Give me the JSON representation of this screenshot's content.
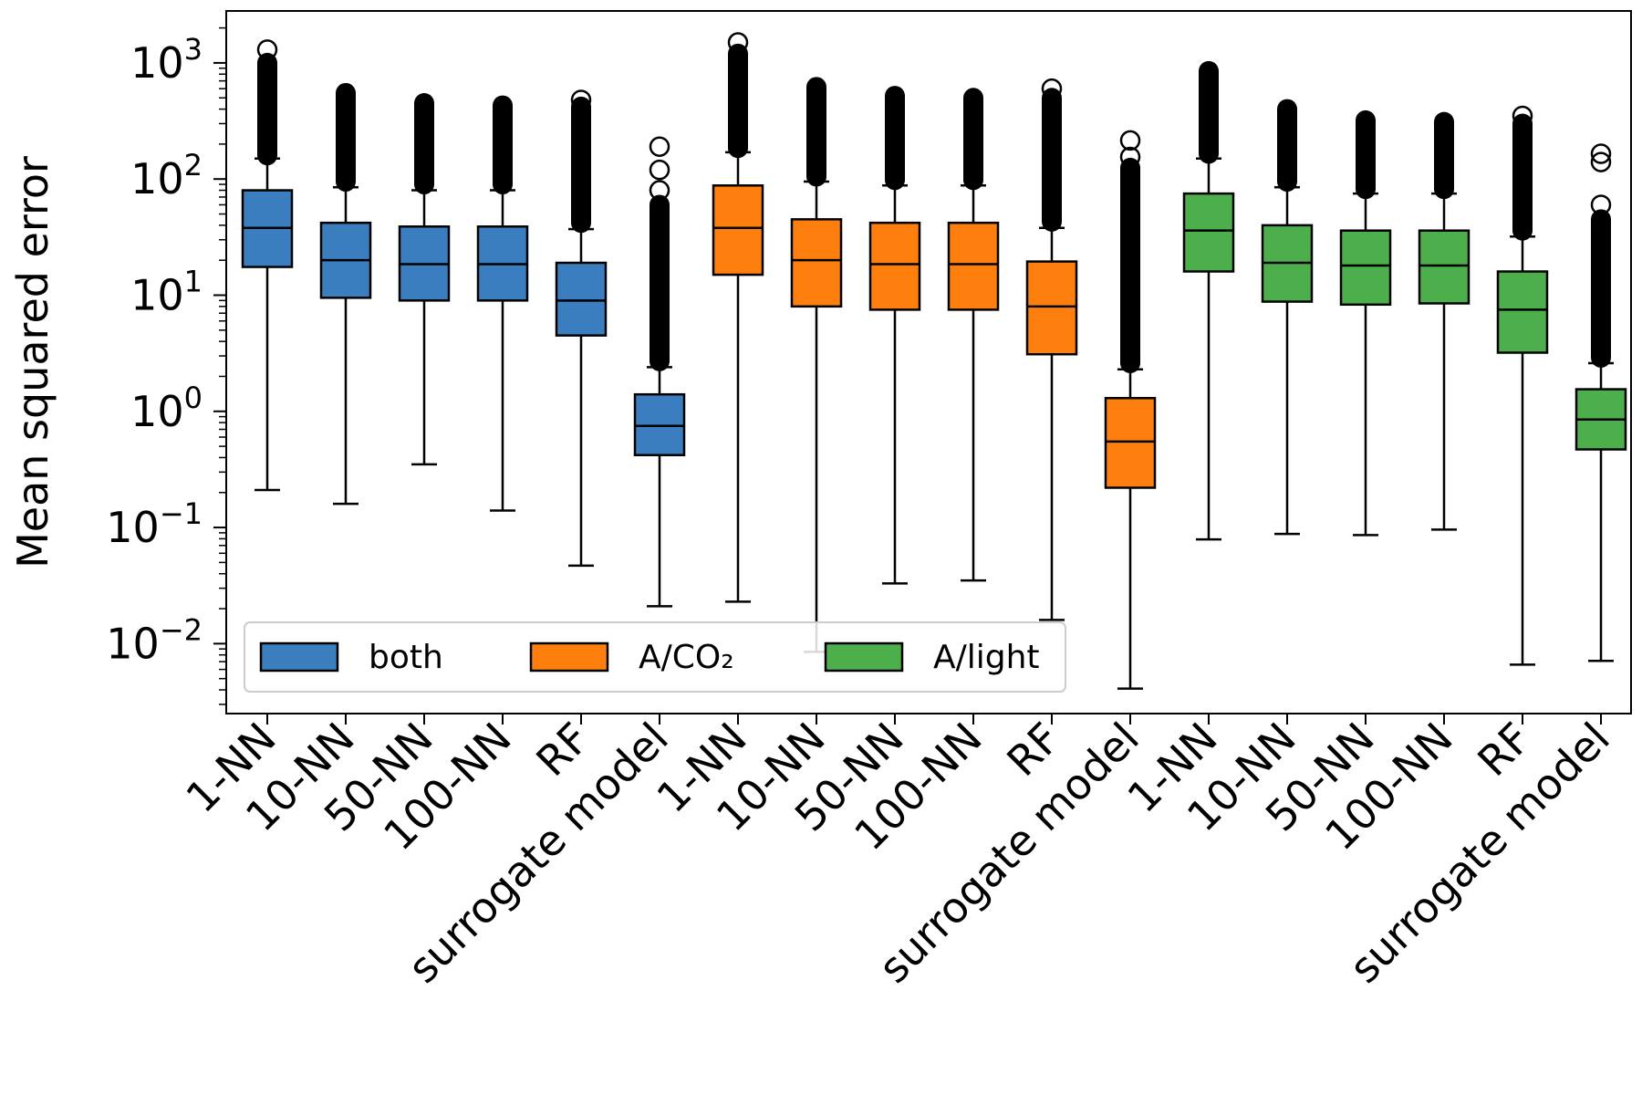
{
  "chart_data": {
    "type": "box",
    "title": "",
    "xlabel": "",
    "ylabel": "Mean squared error",
    "yscale": "log",
    "ylim": [
      0.0025,
      2800
    ],
    "y_ticks": [
      {
        "value": 0.01,
        "base": "10",
        "exp": "−2"
      },
      {
        "value": 0.1,
        "base": "10",
        "exp": "−1"
      },
      {
        "value": 1,
        "base": "10",
        "exp": "0"
      },
      {
        "value": 10,
        "base": "10",
        "exp": "1"
      },
      {
        "value": 100,
        "base": "10",
        "exp": "2"
      },
      {
        "value": 1000,
        "base": "10",
        "exp": "3"
      }
    ],
    "grid": false,
    "legend": {
      "position": "lower-left",
      "entries": [
        {
          "label": "both",
          "color": "#3a7ebf"
        },
        {
          "label": "A/CO₂",
          "color": "#ff7f0e"
        },
        {
          "label": "A/light",
          "color": "#4caf4c"
        }
      ]
    },
    "boxes": [
      {
        "label": "1-NN",
        "group": 0,
        "whisker_low": 0.21,
        "q1": 17.5,
        "median": 38,
        "q3": 80,
        "whisker_high": 150,
        "outlier_low": 160,
        "outlier_high": 1000,
        "extra_outliers": [
          1300
        ]
      },
      {
        "label": "10-NN",
        "group": 0,
        "whisker_low": 0.16,
        "q1": 9.5,
        "median": 20,
        "q3": 42,
        "whisker_high": 85,
        "outlier_low": 95,
        "outlier_high": 550,
        "extra_outliers": []
      },
      {
        "label": "50-NN",
        "group": 0,
        "whisker_low": 0.35,
        "q1": 9,
        "median": 18.5,
        "q3": 39,
        "whisker_high": 80,
        "outlier_low": 90,
        "outlier_high": 450,
        "extra_outliers": []
      },
      {
        "label": "100-NN",
        "group": 0,
        "whisker_low": 0.14,
        "q1": 9,
        "median": 18.5,
        "q3": 39,
        "whisker_high": 80,
        "outlier_low": 90,
        "outlier_high": 430,
        "extra_outliers": []
      },
      {
        "label": "RF",
        "group": 0,
        "whisker_low": 0.047,
        "q1": 4.5,
        "median": 9,
        "q3": 19,
        "whisker_high": 37,
        "outlier_low": 42,
        "outlier_high": 420,
        "extra_outliers": [
          480
        ]
      },
      {
        "label": "surrogate model",
        "group": 0,
        "whisker_low": 0.021,
        "q1": 0.42,
        "median": 0.75,
        "q3": 1.4,
        "whisker_high": 2.4,
        "outlier_low": 2.7,
        "outlier_high": 60,
        "extra_outliers": [
          80,
          120,
          190
        ]
      },
      {
        "label": "1-NN",
        "group": 1,
        "whisker_low": 0.023,
        "q1": 15,
        "median": 38,
        "q3": 88,
        "whisker_high": 170,
        "outlier_low": 185,
        "outlier_high": 1200,
        "extra_outliers": [
          1500
        ]
      },
      {
        "label": "10-NN",
        "group": 1,
        "whisker_low": 0.0085,
        "q1": 8,
        "median": 20,
        "q3": 45,
        "whisker_high": 95,
        "outlier_low": 105,
        "outlier_high": 620,
        "extra_outliers": []
      },
      {
        "label": "50-NN",
        "group": 1,
        "whisker_low": 0.033,
        "q1": 7.5,
        "median": 18.5,
        "q3": 42,
        "whisker_high": 88,
        "outlier_low": 98,
        "outlier_high": 520,
        "extra_outliers": []
      },
      {
        "label": "100-NN",
        "group": 1,
        "whisker_low": 0.035,
        "q1": 7.5,
        "median": 18.5,
        "q3": 42,
        "whisker_high": 88,
        "outlier_low": 98,
        "outlier_high": 500,
        "extra_outliers": []
      },
      {
        "label": "RF",
        "group": 1,
        "whisker_low": 0.016,
        "q1": 3.1,
        "median": 8,
        "q3": 19.5,
        "whisker_high": 38,
        "outlier_low": 43,
        "outlier_high": 500,
        "extra_outliers": [
          600
        ]
      },
      {
        "label": "surrogate model",
        "group": 1,
        "whisker_low": 0.0041,
        "q1": 0.22,
        "median": 0.55,
        "q3": 1.3,
        "whisker_high": 2.3,
        "outlier_low": 2.6,
        "outlier_high": 125,
        "extra_outliers": [
          155,
          215
        ]
      },
      {
        "label": "1-NN",
        "group": 2,
        "whisker_low": 0.079,
        "q1": 16,
        "median": 36,
        "q3": 75,
        "whisker_high": 150,
        "outlier_low": 165,
        "outlier_high": 850,
        "extra_outliers": []
      },
      {
        "label": "10-NN",
        "group": 2,
        "whisker_low": 0.088,
        "q1": 8.8,
        "median": 19,
        "q3": 40,
        "whisker_high": 85,
        "outlier_low": 95,
        "outlier_high": 400,
        "extra_outliers": []
      },
      {
        "label": "50-NN",
        "group": 2,
        "whisker_low": 0.086,
        "q1": 8.3,
        "median": 18,
        "q3": 36,
        "whisker_high": 75,
        "outlier_low": 82,
        "outlier_high": 320,
        "extra_outliers": []
      },
      {
        "label": "100-NN",
        "group": 2,
        "whisker_low": 0.096,
        "q1": 8.5,
        "median": 18,
        "q3": 36,
        "whisker_high": 75,
        "outlier_low": 82,
        "outlier_high": 310,
        "extra_outliers": []
      },
      {
        "label": "RF",
        "group": 2,
        "whisker_low": 0.0066,
        "q1": 3.2,
        "median": 7.5,
        "q3": 16,
        "whisker_high": 32,
        "outlier_low": 36,
        "outlier_high": 300,
        "extra_outliers": [
          350
        ]
      },
      {
        "label": "surrogate model",
        "group": 2,
        "whisker_low": 0.0071,
        "q1": 0.47,
        "median": 0.85,
        "q3": 1.55,
        "whisker_high": 2.6,
        "outlier_low": 2.9,
        "outlier_high": 45,
        "extra_outliers": [
          60,
          140,
          165
        ]
      }
    ]
  }
}
